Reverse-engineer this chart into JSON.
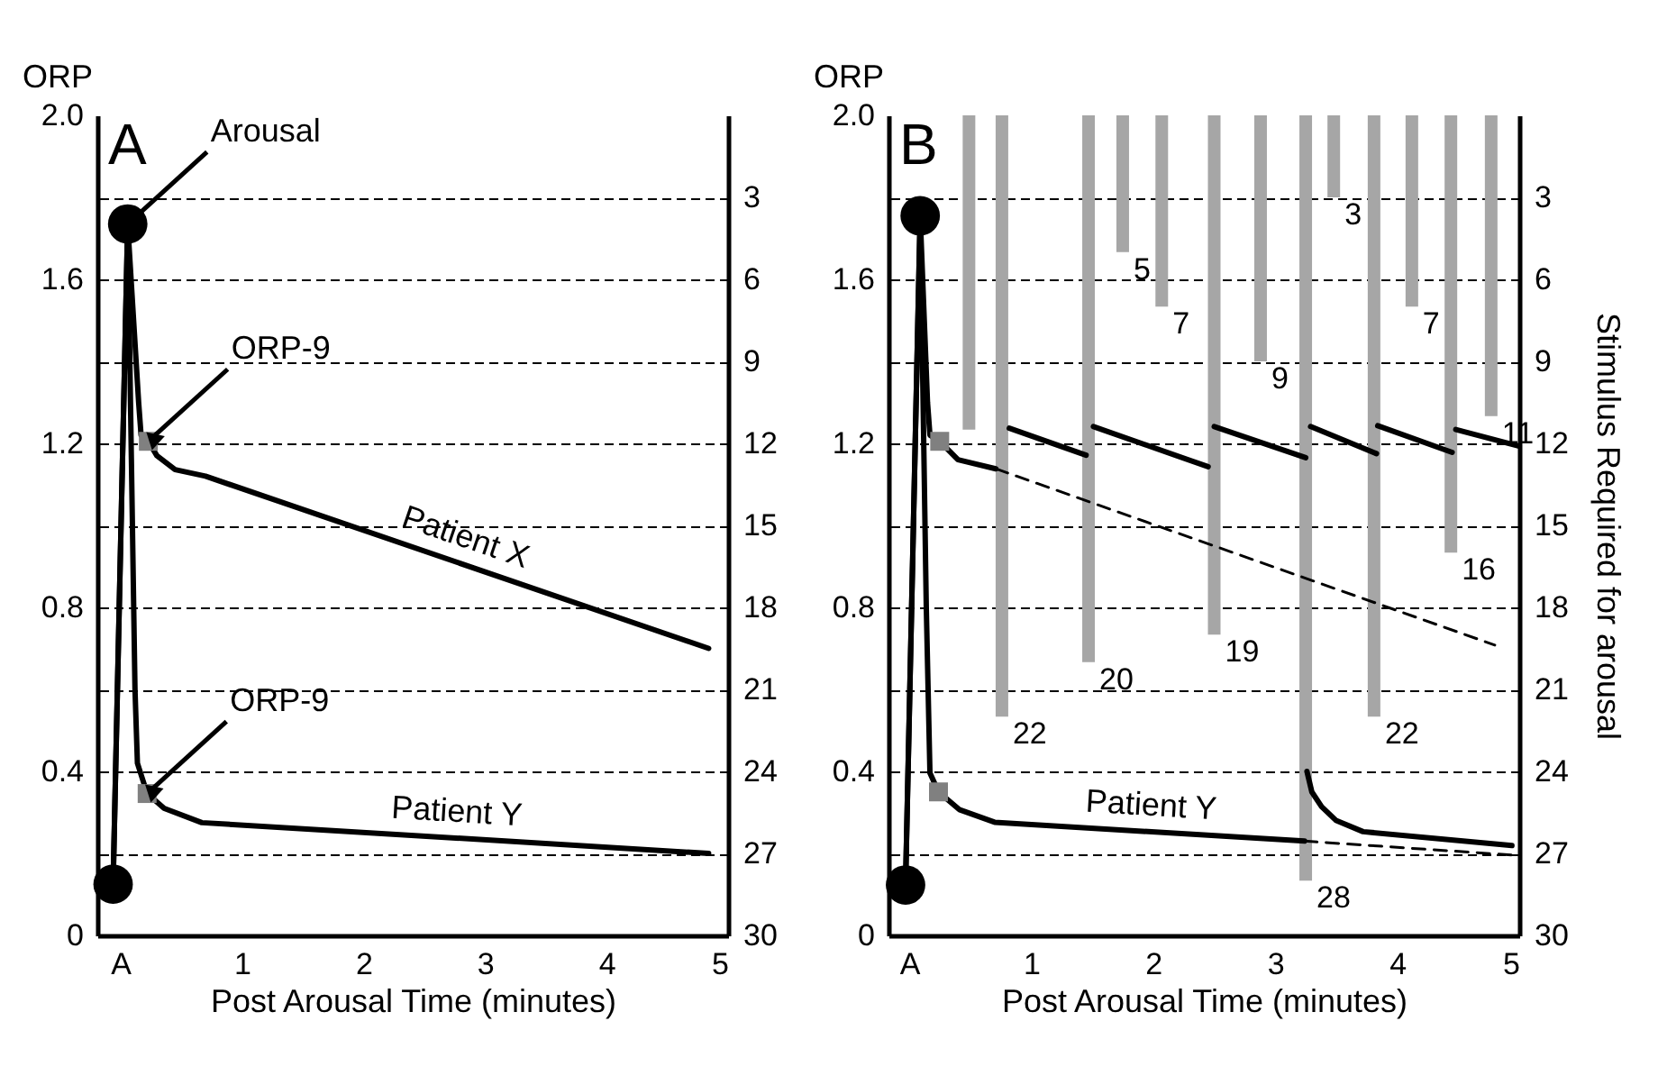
{
  "chart_data": [
    {
      "type": "line",
      "title": "A",
      "xlabel": "Post Arousal Time (minutes)",
      "ylabel": "ORP",
      "xlim": [
        -0.19,
        5
      ],
      "xticks": [
        {
          "value": 0,
          "label": "A"
        },
        1,
        2,
        3,
        4,
        5
      ],
      "ylim": [
        0,
        2
      ],
      "yticks": [
        0,
        0.4,
        0.8,
        1.2,
        1.6,
        {
          "value": 2,
          "label": "2.0"
        }
      ],
      "y2lim": [
        30,
        0
      ],
      "y2ticks": [
        3,
        6,
        9,
        12,
        15,
        18,
        21,
        24,
        27,
        30
      ],
      "grid": "y2",
      "annotations": [
        {
          "text": "Arousal",
          "x": 0.06,
          "y": 1.735
        },
        {
          "text": "ORP-9",
          "x": 0.23,
          "y": 1.205
        },
        {
          "text": "ORP-9",
          "x": 0.22,
          "y": 0.346
        }
      ],
      "series": [
        {
          "name": "Patient X",
          "color": "#000000",
          "x": [
            -0.06,
            0.06,
            0.15,
            0.17,
            0.23,
            0.3,
            0.45,
            0.7,
            4.84
          ],
          "values": [
            0.125,
            1.735,
            1.3,
            1.22,
            1.205,
            1.17,
            1.136,
            1.12,
            0.7
          ]
        },
        {
          "name": "Patient Y",
          "color": "#000000",
          "x": [
            -0.06,
            0.06,
            0.12,
            0.14,
            0.22,
            0.36,
            0.67,
            4.84
          ],
          "values": [
            0.125,
            1.735,
            0.6,
            0.42,
            0.346,
            0.31,
            0.275,
            0.2
          ]
        },
        {
          "type": "scatter",
          "marker": "circle",
          "color": "#000000",
          "x": [
            -0.06,
            0.06
          ],
          "values": [
            0.125,
            1.735
          ]
        },
        {
          "type": "scatter",
          "marker": "square",
          "color": "#808080",
          "x": [
            0.23,
            0.22
          ],
          "values": [
            1.205,
            0.346
          ]
        }
      ]
    },
    {
      "type": "line",
      "title": "B",
      "xlabel": "Post Arousal Time (minutes)",
      "ylabel": "ORP",
      "y2label": "Stimulus Required for arousal",
      "xlim": [
        -0.17,
        5
      ],
      "xticks": [
        {
          "value": 0,
          "label": "A"
        },
        1,
        2,
        3,
        4,
        5
      ],
      "ylim": [
        0,
        2
      ],
      "yticks": [
        0,
        0.4,
        0.8,
        1.2,
        1.6,
        {
          "value": 2,
          "label": "2.0"
        }
      ],
      "y2lim": [
        30,
        0
      ],
      "y2ticks": [
        3,
        6,
        9,
        12,
        15,
        18,
        21,
        24,
        27,
        30
      ],
      "grid": "y2",
      "series": [
        {
          "type": "bar",
          "axis": "y2",
          "color": "#a6a6a6",
          "x": [
            0.49,
            0.76,
            1.47,
            1.75,
            2.07,
            2.5,
            2.88,
            3.25,
            3.48,
            3.81,
            4.12,
            4.44,
            4.77
          ],
          "base": [
            0,
            0,
            0,
            0,
            0,
            0,
            0,
            0,
            0,
            0,
            0,
            0,
            0
          ],
          "values": [
            11.5,
            22,
            20,
            5,
            7,
            19,
            9,
            28,
            3,
            22,
            7,
            16,
            11
          ],
          "value_labels": [
            null,
            "22",
            "20",
            "5",
            "7",
            "19",
            "9",
            "28",
            "3",
            "22",
            "7",
            "16",
            "11"
          ]
        },
        {
          "color": "#000000",
          "x": [
            -0.03,
            0.09,
            0.15,
            0.17,
            0.25,
            0.4,
            0.71
          ],
          "values": [
            0.123,
            1.755,
            1.3,
            1.22,
            1.205,
            1.16,
            1.138
          ]
        },
        {
          "color": "#000000",
          "x": [
            0.82,
            1.45
          ],
          "values": [
            1.237,
            1.171
          ]
        },
        {
          "color": "#000000",
          "x": [
            1.51,
            2.45
          ],
          "values": [
            1.241,
            1.143
          ]
        },
        {
          "color": "#000000",
          "x": [
            2.5,
            3.25
          ],
          "values": [
            1.241,
            1.165
          ]
        },
        {
          "color": "#000000",
          "x": [
            3.29,
            3.83
          ],
          "values": [
            1.241,
            1.175
          ]
        },
        {
          "color": "#000000",
          "x": [
            3.84,
            4.45
          ],
          "values": [
            1.243,
            1.178
          ]
        },
        {
          "color": "#000000",
          "x": [
            4.48,
            5.0
          ],
          "values": [
            1.234,
            1.193
          ]
        },
        {
          "name": "Patient Y",
          "color": "#000000",
          "x": [
            -0.03,
            0.09,
            0.14,
            0.17,
            0.24,
            0.41,
            0.7,
            3.24
          ],
          "values": [
            0.123,
            1.755,
            0.8,
            0.396,
            0.35,
            0.307,
            0.276,
            0.23
          ]
        },
        {
          "color": "#000000",
          "x": [
            3.26,
            3.3,
            3.38,
            3.5,
            3.72,
            4.94
          ],
          "values": [
            0.4,
            0.35,
            0.314,
            0.28,
            0.253,
            0.219
          ]
        },
        {
          "line_style": "dashed",
          "color": "#000000",
          "x": [
            0.71,
            4.8
          ],
          "values": [
            1.138,
            0.708
          ]
        },
        {
          "line_style": "dashed",
          "color": "#000000",
          "x": [
            3.24,
            4.94
          ],
          "values": [
            0.23,
            0.196
          ]
        },
        {
          "type": "scatter",
          "marker": "circle",
          "color": "#000000",
          "x": [
            -0.03,
            0.09
          ],
          "values": [
            0.123,
            1.755
          ]
        },
        {
          "type": "scatter",
          "marker": "square",
          "color": "#808080",
          "x": [
            0.25,
            0.24
          ],
          "values": [
            1.205,
            0.35
          ]
        }
      ]
    }
  ]
}
